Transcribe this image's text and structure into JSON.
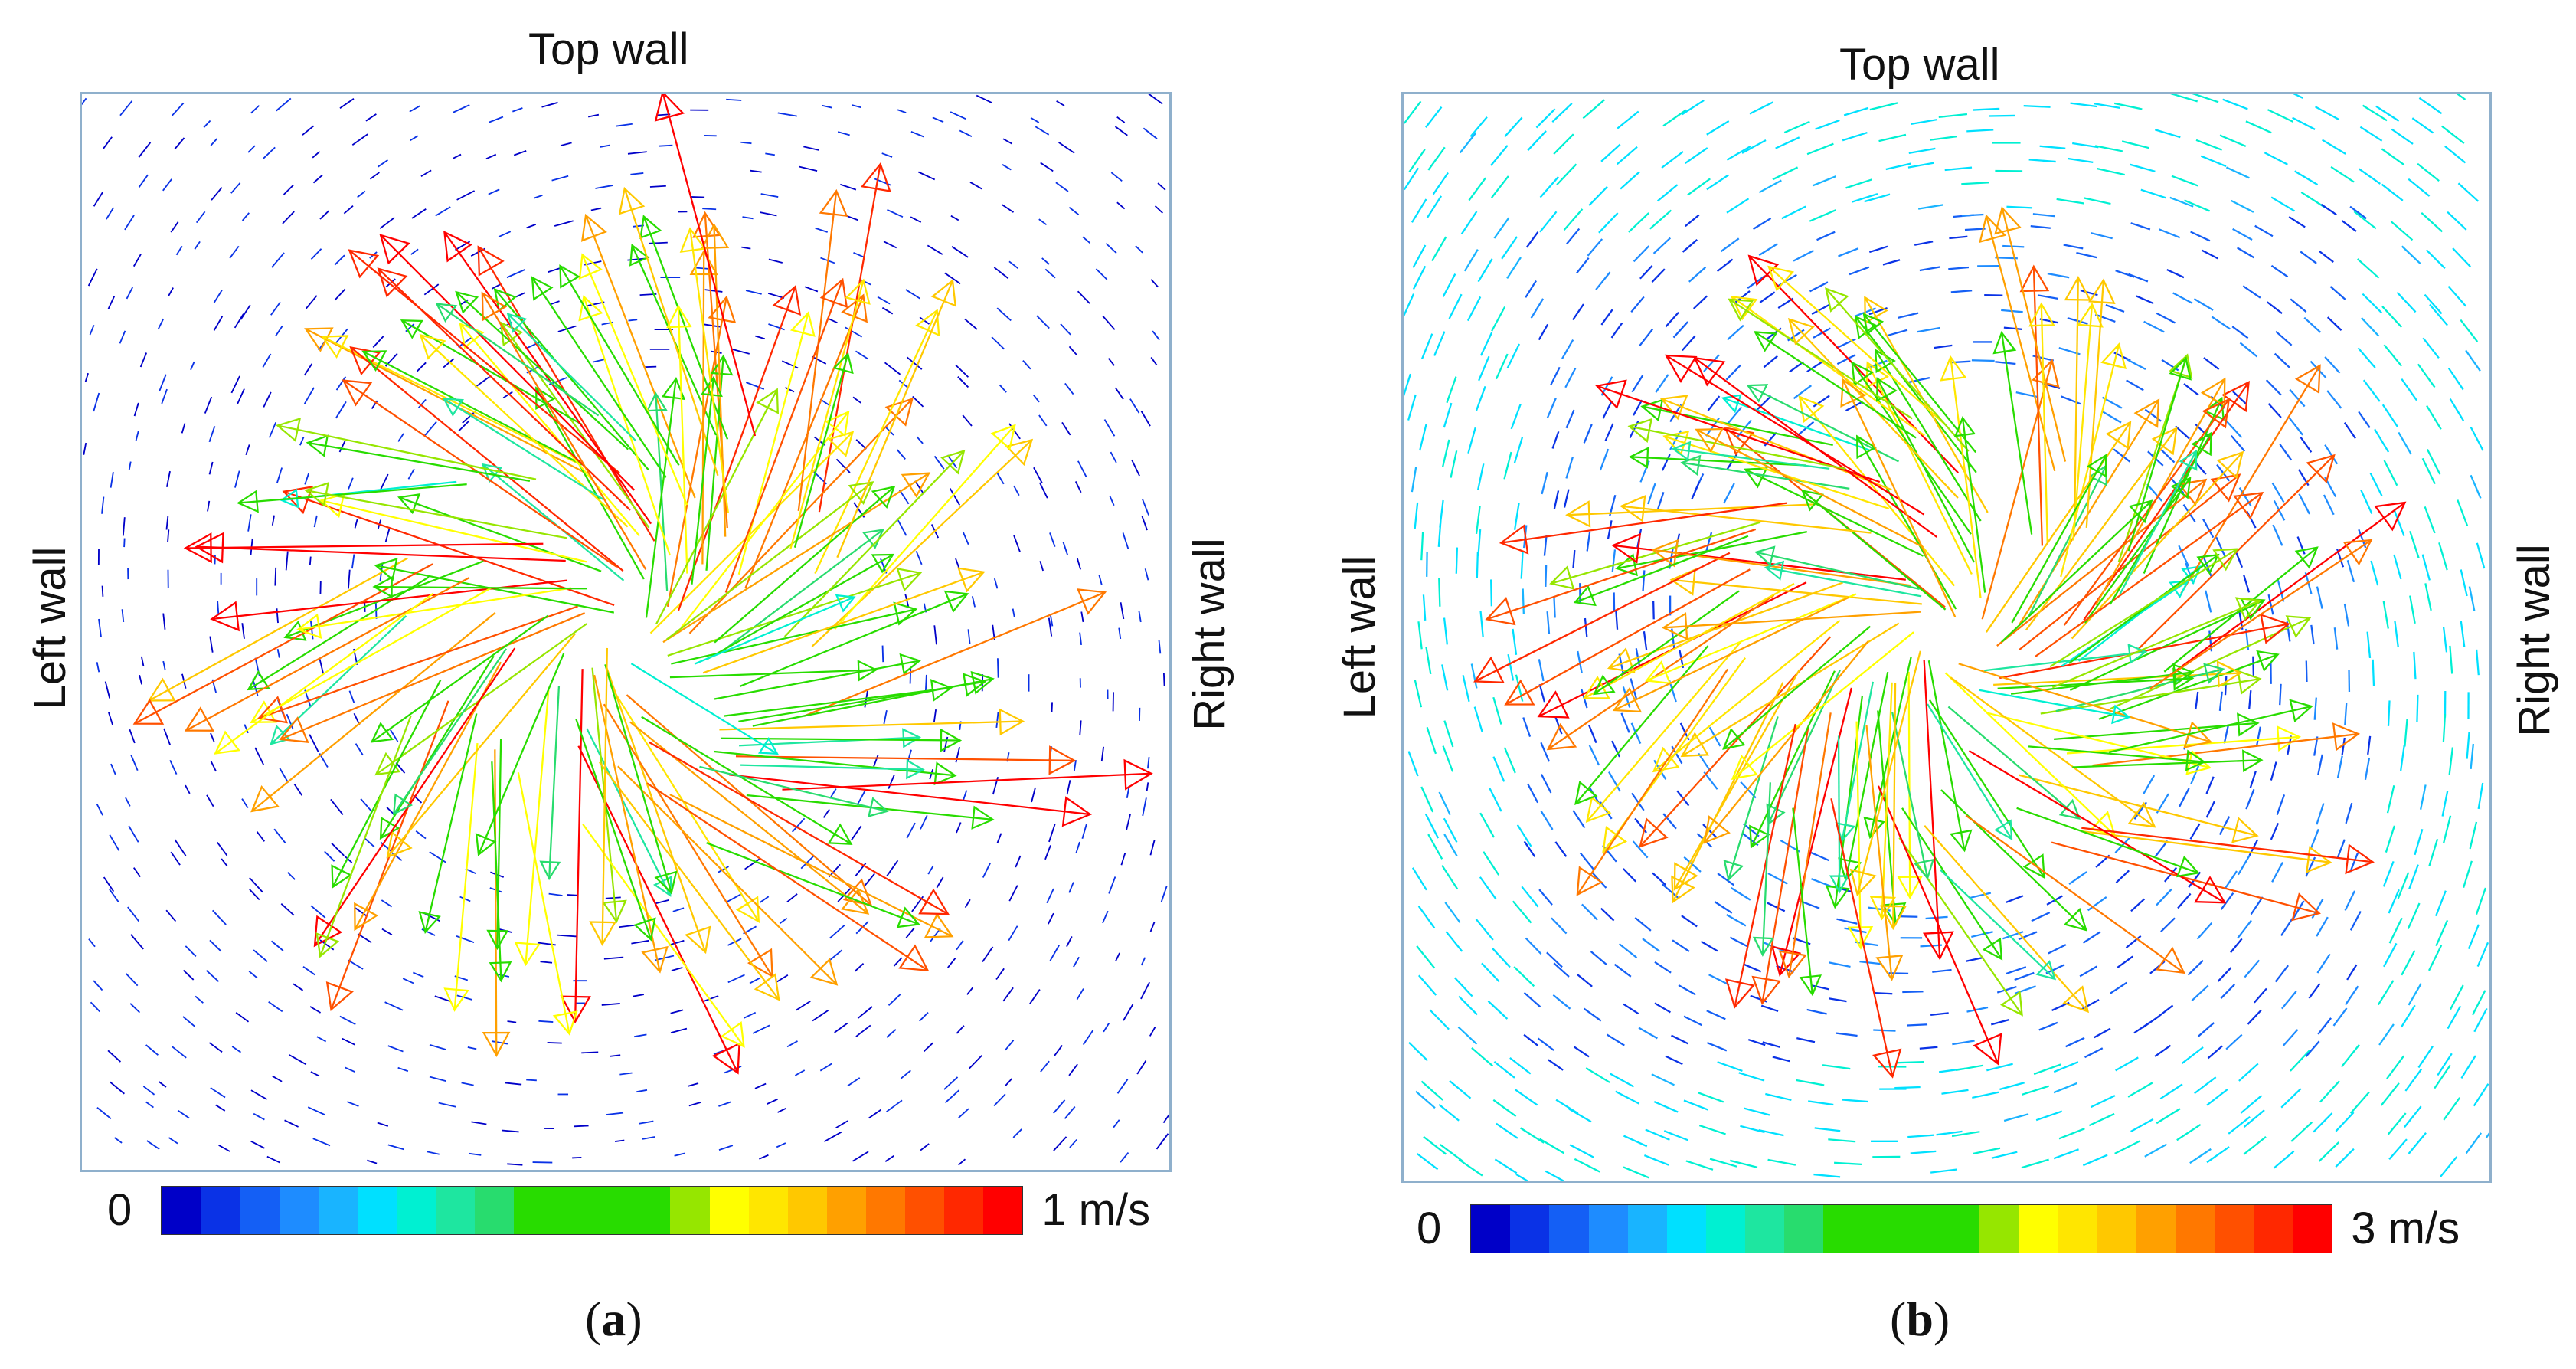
{
  "panels": [
    {
      "id": "a",
      "top_label": "Top wall",
      "left_label": "Left wall",
      "right_label": "Right wall",
      "colorbar_min": "0",
      "colorbar_max": "1 m/s",
      "caption_open": "(",
      "caption_letter": "a",
      "caption_close": ")",
      "max_speed": 1,
      "background_speed": "low",
      "vortex": "centered"
    },
    {
      "id": "b",
      "top_label": "Top wall",
      "left_label": "Left wall",
      "right_label": "Right wall",
      "colorbar_min": "0",
      "colorbar_max": "3 m/s",
      "caption_open": "(",
      "caption_letter": "b",
      "caption_close": ")",
      "max_speed": 3,
      "background_speed": "moderate",
      "vortex": "centered"
    }
  ],
  "colors": {
    "frame": "#8fb0cc",
    "colormap": [
      "#0000c8",
      "#0a32e6",
      "#145ff5",
      "#1e8cff",
      "#19b4ff",
      "#00e0ff",
      "#00f0d2",
      "#1ee6a0",
      "#28dc6e",
      "#28dc00",
      "#28dc00",
      "#28dc00",
      "#28dc00",
      "#96e600",
      "#ffff00",
      "#ffe600",
      "#ffc800",
      "#ffa000",
      "#ff7800",
      "#ff5000",
      "#ff2800",
      "#ff0000"
    ]
  }
}
